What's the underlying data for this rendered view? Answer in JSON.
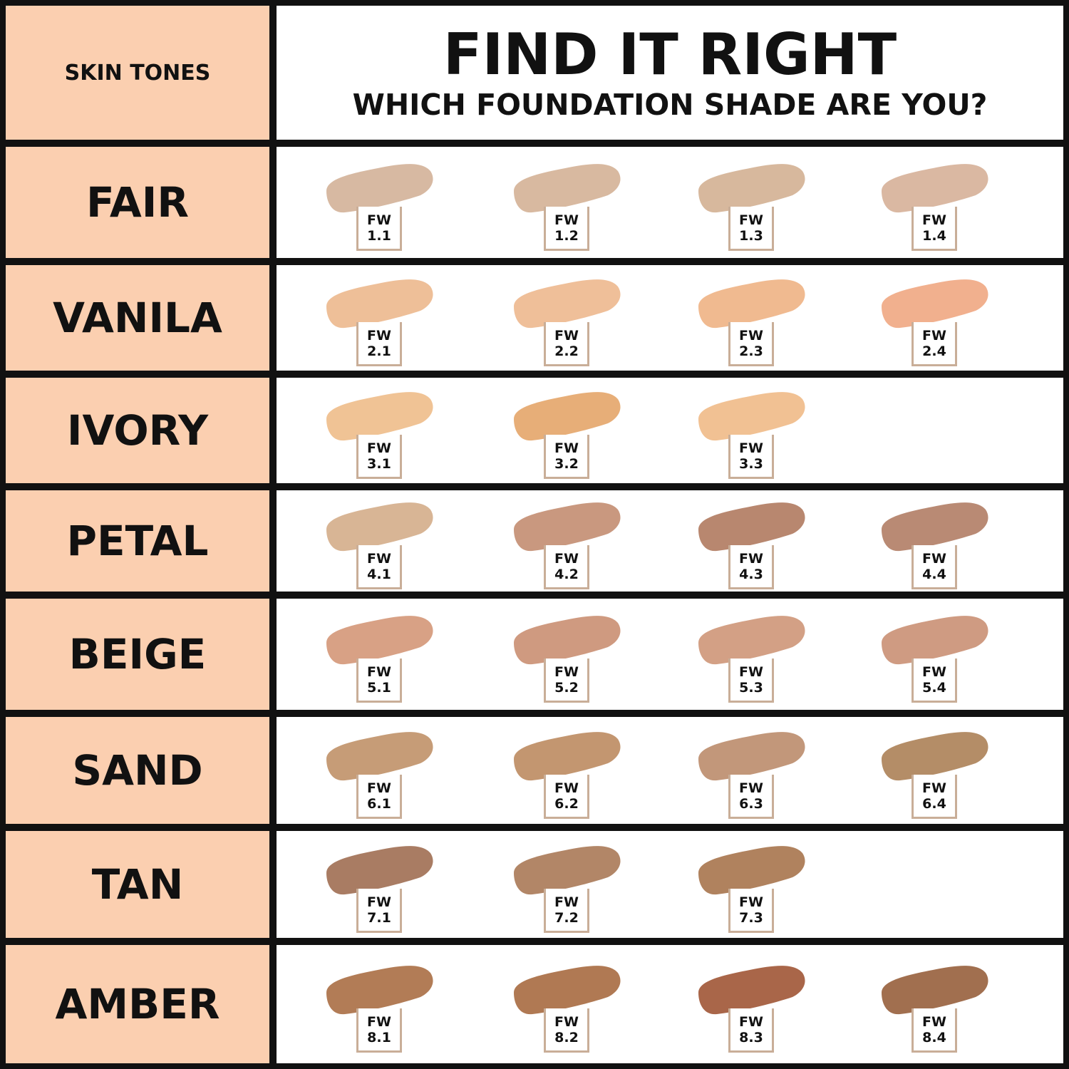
{
  "header": {
    "label": "SKIN TONES",
    "title": "FIND IT RIGHT",
    "subtitle": "WHICH FOUNDATION SHADE ARE YOU?"
  },
  "rows": [
    {
      "tone": "FAIR",
      "shades": [
        {
          "prefix": "FW",
          "code": "1.1",
          "color": "#d7b9a2"
        },
        {
          "prefix": "FW",
          "code": "1.2",
          "color": "#d8b9a0"
        },
        {
          "prefix": "FW",
          "code": "1.3",
          "color": "#d7b89d"
        },
        {
          "prefix": "FW",
          "code": "1.4",
          "color": "#dab8a2"
        }
      ]
    },
    {
      "tone": "VANILA",
      "shades": [
        {
          "prefix": "FW",
          "code": "2.1",
          "color": "#eebf98"
        },
        {
          "prefix": "FW",
          "code": "2.2",
          "color": "#efbf99"
        },
        {
          "prefix": "FW",
          "code": "2.3",
          "color": "#f0ba90"
        },
        {
          "prefix": "FW",
          "code": "2.4",
          "color": "#f1b08e"
        }
      ]
    },
    {
      "tone": "IVORY",
      "shades": [
        {
          "prefix": "FW",
          "code": "3.1",
          "color": "#f0c395"
        },
        {
          "prefix": "FW",
          "code": "3.2",
          "color": "#e7ae78"
        },
        {
          "prefix": "FW",
          "code": "3.3",
          "color": "#f1c193"
        }
      ]
    },
    {
      "tone": "PETAL",
      "shades": [
        {
          "prefix": "FW",
          "code": "4.1",
          "color": "#d8b595"
        },
        {
          "prefix": "FW",
          "code": "4.2",
          "color": "#c9987f"
        },
        {
          "prefix": "FW",
          "code": "4.3",
          "color": "#b8876f"
        },
        {
          "prefix": "FW",
          "code": "4.4",
          "color": "#b98a74"
        }
      ]
    },
    {
      "tone": "BEIGE",
      "shades": [
        {
          "prefix": "FW",
          "code": "5.1",
          "color": "#d8a185"
        },
        {
          "prefix": "FW",
          "code": "5.2",
          "color": "#cf9a80"
        },
        {
          "prefix": "FW",
          "code": "5.3",
          "color": "#d3a085"
        },
        {
          "prefix": "FW",
          "code": "5.4",
          "color": "#cf9b82"
        }
      ]
    },
    {
      "tone": "SAND",
      "shades": [
        {
          "prefix": "FW",
          "code": "6.1",
          "color": "#c69c77"
        },
        {
          "prefix": "FW",
          "code": "6.2",
          "color": "#c39670"
        },
        {
          "prefix": "FW",
          "code": "6.3",
          "color": "#c2977a"
        },
        {
          "prefix": "FW",
          "code": "6.4",
          "color": "#b48d67"
        }
      ]
    },
    {
      "tone": "TAN",
      "shades": [
        {
          "prefix": "FW",
          "code": "7.1",
          "color": "#a97c63"
        },
        {
          "prefix": "FW",
          "code": "7.2",
          "color": "#b28667"
        },
        {
          "prefix": "FW",
          "code": "7.3",
          "color": "#b0825e"
        }
      ]
    },
    {
      "tone": "AMBER",
      "shades": [
        {
          "prefix": "FW",
          "code": "8.1",
          "color": "#b27c56"
        },
        {
          "prefix": "FW",
          "code": "8.2",
          "color": "#b07953"
        },
        {
          "prefix": "FW",
          "code": "8.3",
          "color": "#a96649"
        },
        {
          "prefix": "FW",
          "code": "8.4",
          "color": "#a16f4f"
        }
      ]
    }
  ]
}
